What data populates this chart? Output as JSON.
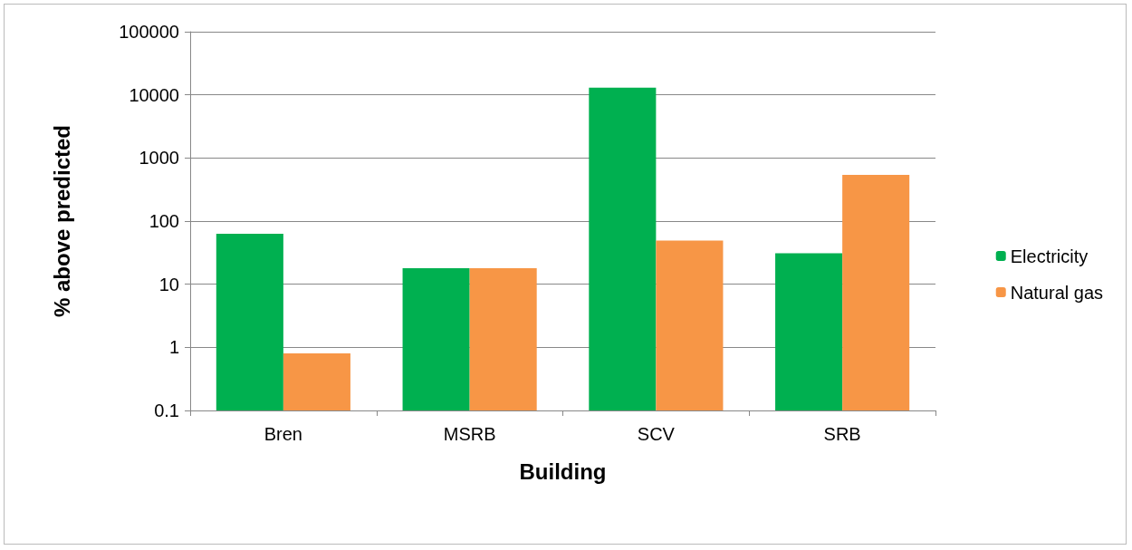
{
  "chart_data": {
    "type": "bar",
    "xlabel": "Building",
    "ylabel": "% above predicted",
    "categories": [
      "Bren",
      "MSRB",
      "SCV",
      "SRB"
    ],
    "series": [
      {
        "name": "Electricity",
        "color": "#00b050",
        "values": [
          63,
          18,
          13000,
          31
        ]
      },
      {
        "name": "Natural gas",
        "color": "#f79646",
        "values": [
          0.8,
          18,
          49,
          540
        ]
      }
    ],
    "log": "y",
    "ylim": [
      0.1,
      100000
    ],
    "yticks": [
      0.1,
      1,
      10,
      100,
      1000,
      10000,
      100000
    ],
    "grid": "y",
    "legend": "right"
  }
}
